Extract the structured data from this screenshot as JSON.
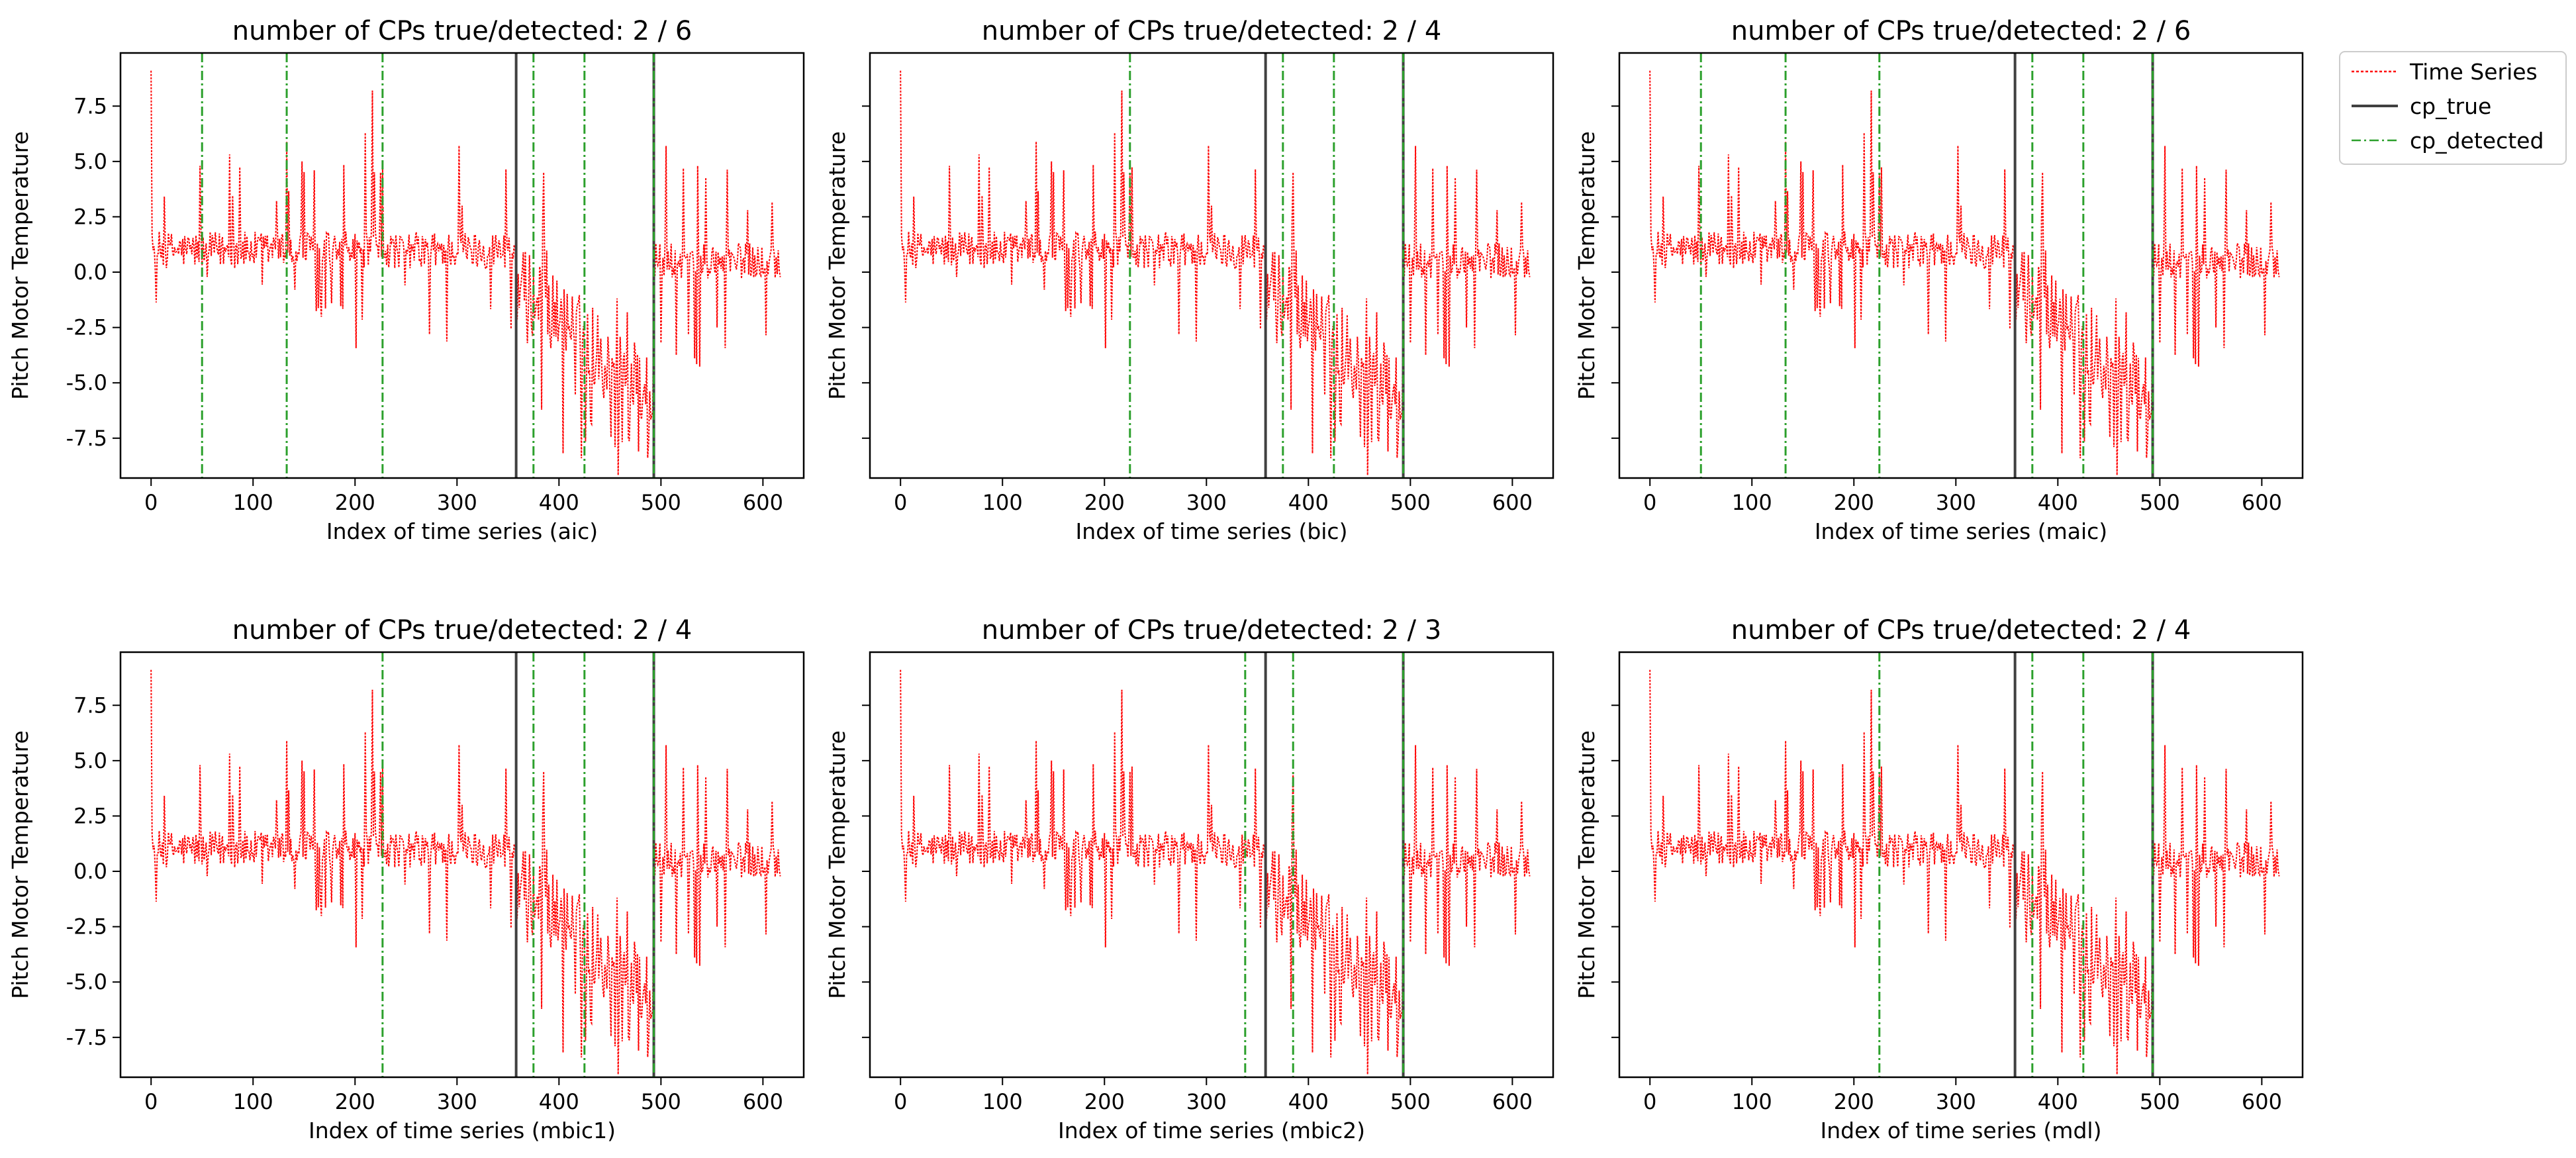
{
  "chart_data": [
    {
      "type": "line",
      "title": "number of CPs true/detected: 2  / 6",
      "xlabel": "Index of time series (aic)",
      "ylabel": "Pitch Motor Temperature",
      "xlim": [
        -30,
        640
      ],
      "ylim": [
        -9.3,
        9.9
      ],
      "xticks": [
        0,
        100,
        200,
        300,
        400,
        500,
        600
      ],
      "yticks": [
        -7.5,
        -5.0,
        -2.5,
        0.0,
        2.5,
        5.0,
        7.5
      ],
      "cp_true": [
        358,
        493
      ],
      "cp_detected": [
        50,
        133,
        227,
        375,
        425,
        493
      ]
    },
    {
      "type": "line",
      "title": "number of CPs true/detected: 2  / 4",
      "xlabel": "Index of time series (bic)",
      "ylabel": "Pitch Motor Temperature",
      "xlim": [
        -30,
        640
      ],
      "ylim": [
        -9.3,
        9.9
      ],
      "xticks": [
        0,
        100,
        200,
        300,
        400,
        500,
        600
      ],
      "yticks": [
        -7.5,
        -5.0,
        -2.5,
        0.0,
        2.5,
        5.0,
        7.5
      ],
      "cp_true": [
        358,
        493
      ],
      "cp_detected": [
        225,
        375,
        425,
        493
      ]
    },
    {
      "type": "line",
      "title": "number of CPs true/detected: 2  / 6",
      "xlabel": "Index of time series (maic)",
      "ylabel": "Pitch Motor Temperature",
      "xlim": [
        -30,
        640
      ],
      "ylim": [
        -9.3,
        9.9
      ],
      "xticks": [
        0,
        100,
        200,
        300,
        400,
        500,
        600
      ],
      "yticks": [
        -7.5,
        -5.0,
        -2.5,
        0.0,
        2.5,
        5.0,
        7.5
      ],
      "cp_true": [
        358,
        493
      ],
      "cp_detected": [
        50,
        133,
        225,
        375,
        425,
        493
      ]
    },
    {
      "type": "line",
      "title": "number of CPs true/detected: 2  / 4",
      "xlabel": "Index of time series (mbic1)",
      "ylabel": "Pitch Motor Temperature",
      "xlim": [
        -30,
        640
      ],
      "ylim": [
        -9.3,
        9.9
      ],
      "xticks": [
        0,
        100,
        200,
        300,
        400,
        500,
        600
      ],
      "yticks": [
        -7.5,
        -5.0,
        -2.5,
        0.0,
        2.5,
        5.0,
        7.5
      ],
      "cp_true": [
        358,
        493
      ],
      "cp_detected": [
        227,
        375,
        425,
        493
      ]
    },
    {
      "type": "line",
      "title": "number of CPs true/detected: 2  / 3",
      "xlabel": "Index of time series (mbic2)",
      "ylabel": "Pitch Motor Temperature",
      "xlim": [
        -30,
        640
      ],
      "ylim": [
        -9.3,
        9.9
      ],
      "xticks": [
        0,
        100,
        200,
        300,
        400,
        500,
        600
      ],
      "yticks": [
        -7.5,
        -5.0,
        -2.5,
        0.0,
        2.5,
        5.0,
        7.5
      ],
      "cp_true": [
        358,
        493
      ],
      "cp_detected": [
        338,
        385,
        493
      ]
    },
    {
      "type": "line",
      "title": "number of CPs true/detected: 2  / 4",
      "xlabel": "Index of time series (mdl)",
      "ylabel": "Pitch Motor Temperature",
      "xlim": [
        -30,
        640
      ],
      "ylim": [
        -9.3,
        9.9
      ],
      "xticks": [
        0,
        100,
        200,
        300,
        400,
        500,
        600
      ],
      "yticks": [
        -7.5,
        -5.0,
        -2.5,
        0.0,
        2.5,
        5.0,
        7.5
      ],
      "cp_true": [
        358,
        493
      ],
      "cp_detected": [
        225,
        375,
        425,
        493
      ]
    }
  ],
  "series_shape": {
    "x_start": 0,
    "x_end": 617,
    "initial_spike": 9.1,
    "segments": [
      {
        "from": 0,
        "to": 358,
        "level": 1.0
      },
      {
        "from": 358,
        "to": 493,
        "level_start": -0.5,
        "level_end": -5.5
      },
      {
        "from": 493,
        "to": 617,
        "level": 0.5
      }
    ],
    "peaks": [
      {
        "x": 48,
        "y": 4.8
      },
      {
        "x": 133,
        "y": 5.9
      },
      {
        "x": 148,
        "y": 5.0
      },
      {
        "x": 160,
        "y": 4.6
      },
      {
        "x": 210,
        "y": 6.3
      },
      {
        "x": 217,
        "y": 8.2
      },
      {
        "x": 225,
        "y": 4.5
      },
      {
        "x": 305,
        "y": 3.0
      },
      {
        "x": 505,
        "y": 5.7
      },
      {
        "x": 585,
        "y": 2.8
      }
    ],
    "troughs": [
      {
        "x": 455,
        "y": -7.9
      },
      {
        "x": 468,
        "y": -7.5
      },
      {
        "x": 478,
        "y": -8.1
      },
      {
        "x": 488,
        "y": -7.6
      }
    ]
  },
  "legend": {
    "position": "upper-right-outside",
    "entries": [
      {
        "label": "Time Series",
        "color": "#ff0000",
        "style": "dotted"
      },
      {
        "label": "cp_true",
        "color": "#404040",
        "style": "solid"
      },
      {
        "label": "cp_detected",
        "color": "#2ca02c",
        "style": "dashdot"
      }
    ]
  },
  "colors": {
    "series": "#ff0000",
    "cp_true": "#404040",
    "cp_detected": "#2ca02c",
    "axes": "#000000"
  }
}
